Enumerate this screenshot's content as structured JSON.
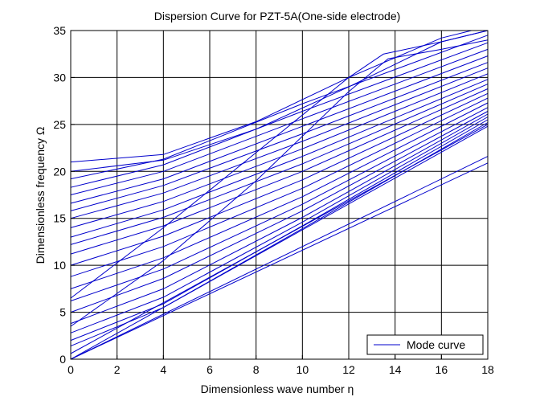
{
  "chart_data": {
    "type": "line",
    "title": "Dispersion Curve for PZT-5A(One-side electrode)",
    "xlabel": "Dimensionless wave number  η",
    "ylabel": "Dimensionless frequency  Ω",
    "xlim": [
      0,
      18
    ],
    "ylim": [
      0,
      35
    ],
    "xticks": [
      "0",
      "2",
      "4",
      "6",
      "8",
      "10",
      "12",
      "14",
      "16",
      "18"
    ],
    "yticks": [
      "0",
      "5",
      "10",
      "15",
      "20",
      "25",
      "30",
      "35"
    ],
    "grid": true,
    "legend": {
      "position": "bottom-right",
      "entries": [
        "Mode curve"
      ]
    },
    "line_color": "#0000cc",
    "series": [
      {
        "x": [
          0,
          18
        ],
        "y": [
          0,
          20.9
        ]
      },
      {
        "x": [
          0,
          18
        ],
        "y": [
          0,
          21.6
        ]
      },
      {
        "x": [
          0,
          18
        ],
        "y": [
          0,
          24.8
        ]
      },
      {
        "x": [
          0,
          18
        ],
        "y": [
          0.6,
          25.0
        ]
      },
      {
        "x": [
          0,
          4,
          10,
          18
        ],
        "y": [
          1.4,
          5.5,
          13.9,
          25.2
        ]
      },
      {
        "x": [
          0,
          4,
          10,
          18
        ],
        "y": [
          2.0,
          5.9,
          14.2,
          25.5
        ]
      },
      {
        "x": [
          0,
          4,
          10,
          18
        ],
        "y": [
          2.8,
          6.6,
          14.6,
          25.8
        ]
      },
      {
        "x": [
          0,
          4,
          10,
          18
        ],
        "y": [
          3.8,
          7.5,
          15.1,
          26.1
        ]
      },
      {
        "x": [
          0,
          4,
          10,
          18
        ],
        "y": [
          5.0,
          8.6,
          15.8,
          26.4
        ]
      },
      {
        "x": [
          0,
          4,
          10,
          18
        ],
        "y": [
          6.2,
          9.6,
          16.5,
          26.8
        ]
      },
      {
        "x": [
          0,
          4,
          10,
          18
        ],
        "y": [
          7.5,
          10.8,
          17.3,
          27.3
        ]
      },
      {
        "x": [
          0,
          4,
          10,
          18
        ],
        "y": [
          8.8,
          12.0,
          18.2,
          27.8
        ]
      },
      {
        "x": [
          0,
          4,
          10,
          18
        ],
        "y": [
          10.0,
          13.1,
          19.1,
          28.3
        ]
      },
      {
        "x": [
          0,
          4,
          10,
          18
        ],
        "y": [
          11.2,
          14.2,
          20.0,
          28.8
        ]
      },
      {
        "x": [
          0,
          4,
          10,
          18
        ],
        "y": [
          12.2,
          15.1,
          20.8,
          29.3
        ]
      },
      {
        "x": [
          0,
          4,
          10,
          18
        ],
        "y": [
          13.0,
          15.9,
          21.6,
          29.8
        ]
      },
      {
        "x": [
          0,
          4,
          10,
          18
        ],
        "y": [
          14.0,
          16.8,
          22.4,
          30.4
        ]
      },
      {
        "x": [
          0,
          4,
          10,
          18
        ],
        "y": [
          15.0,
          17.7,
          23.2,
          31.0
        ]
      },
      {
        "x": [
          0,
          4,
          10,
          18
        ],
        "y": [
          15.8,
          18.5,
          24.0,
          31.6
        ]
      },
      {
        "x": [
          0,
          4,
          10,
          18
        ],
        "y": [
          16.6,
          19.2,
          24.8,
          32.3
        ]
      },
      {
        "x": [
          0,
          4,
          10,
          18
        ],
        "y": [
          17.5,
          20.0,
          25.6,
          33.0
        ]
      },
      {
        "x": [
          0,
          4,
          10,
          18
        ],
        "y": [
          18.3,
          20.7,
          26.4,
          33.7
        ]
      },
      {
        "x": [
          0,
          4,
          10,
          18
        ],
        "y": [
          19.2,
          21.3,
          27.2,
          34.5
        ]
      },
      {
        "x": [
          0,
          4,
          8,
          12,
          16,
          18
        ],
        "y": [
          20.0,
          21.2,
          24.5,
          29.0,
          33.8,
          35.0
        ]
      },
      {
        "x": [
          0,
          4,
          8,
          12,
          16,
          17.3
        ],
        "y": [
          21.0,
          21.8,
          25.3,
          30.0,
          34.2,
          35.0
        ]
      },
      {
        "x": [
          0,
          4,
          8,
          12,
          13.5,
          16,
          18
        ],
        "y": [
          6.5,
          14.0,
          22.0,
          30.0,
          32.5,
          33.8,
          35.0
        ]
      },
      {
        "x": [
          0,
          4,
          8,
          12,
          13.7,
          16,
          18
        ],
        "y": [
          3.5,
          10.5,
          19.0,
          28.5,
          32.0,
          33.0,
          34.0
        ]
      }
    ]
  }
}
